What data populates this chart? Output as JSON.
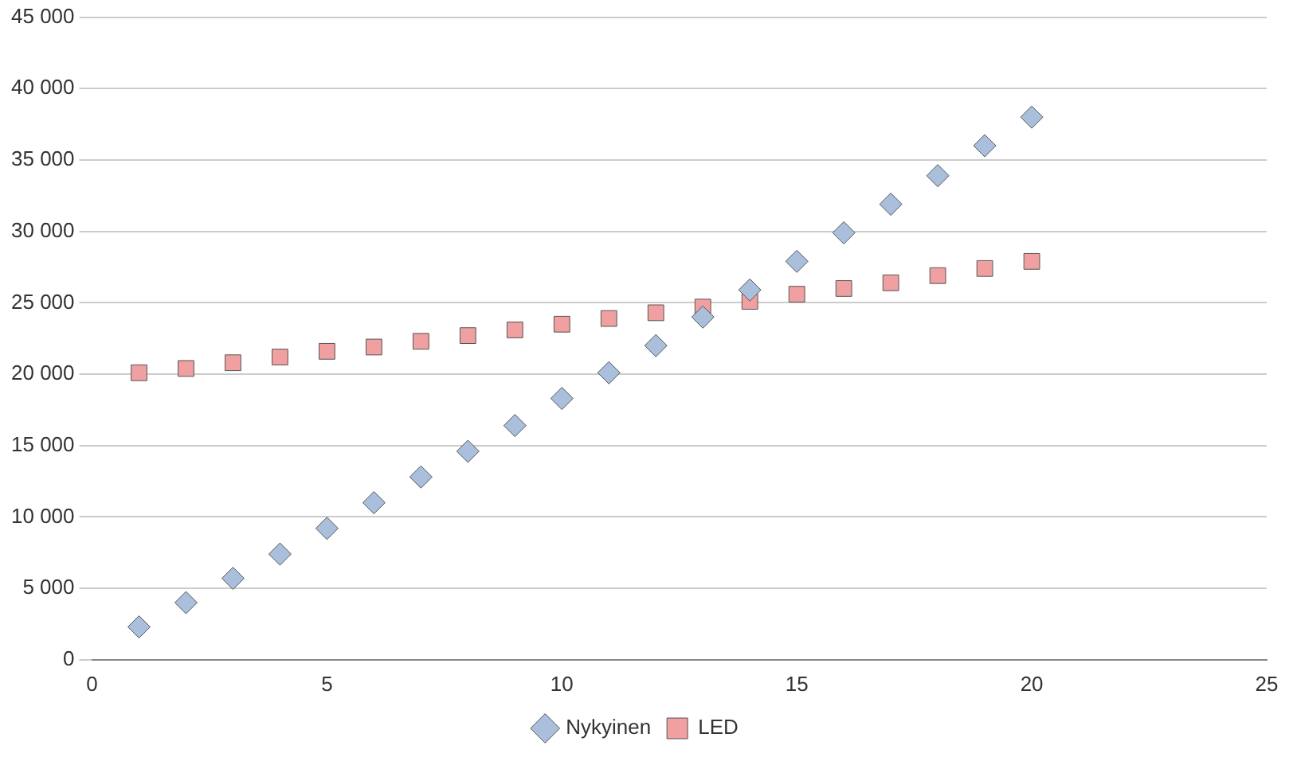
{
  "chart_data": {
    "type": "scatter",
    "x": [
      1,
      2,
      3,
      4,
      5,
      6,
      7,
      8,
      9,
      10,
      11,
      12,
      13,
      14,
      15,
      16,
      17,
      18,
      19,
      20
    ],
    "series": [
      {
        "name": "Nykyinen",
        "color": "#a9bfdc",
        "marker": "diamond",
        "values": [
          2300,
          4000,
          5700,
          7400,
          9200,
          11000,
          12800,
          14600,
          16400,
          18300,
          20100,
          22000,
          24000,
          25900,
          27900,
          29900,
          31900,
          33900,
          36000,
          38000
        ]
      },
      {
        "name": "LED",
        "color": "#f0a0a0",
        "marker": "square",
        "values": [
          20100,
          20400,
          20800,
          21200,
          21600,
          21900,
          22300,
          22700,
          23100,
          23500,
          23900,
          24300,
          24700,
          25100,
          25600,
          26000,
          26400,
          26900,
          27400,
          27900
        ]
      }
    ],
    "xlim": [
      0,
      25
    ],
    "xticks": [
      0,
      5,
      10,
      15,
      20,
      25
    ],
    "ylim": [
      0,
      45000
    ],
    "yticks": [
      0,
      {
        "value": 5000,
        "label": "5 000"
      },
      {
        "value": 10000,
        "label": "10 000"
      },
      {
        "value": 15000,
        "label": "15 000"
      },
      {
        "value": 20000,
        "label": "20 000"
      },
      {
        "value": 25000,
        "label": "25 000"
      },
      {
        "value": 30000,
        "label": "30 000"
      },
      {
        "value": 35000,
        "label": "35 000"
      },
      {
        "value": 40000,
        "label": "40 000"
      },
      {
        "value": 45000,
        "label": "45 000"
      }
    ],
    "grid": "y",
    "legend": "bottom"
  }
}
